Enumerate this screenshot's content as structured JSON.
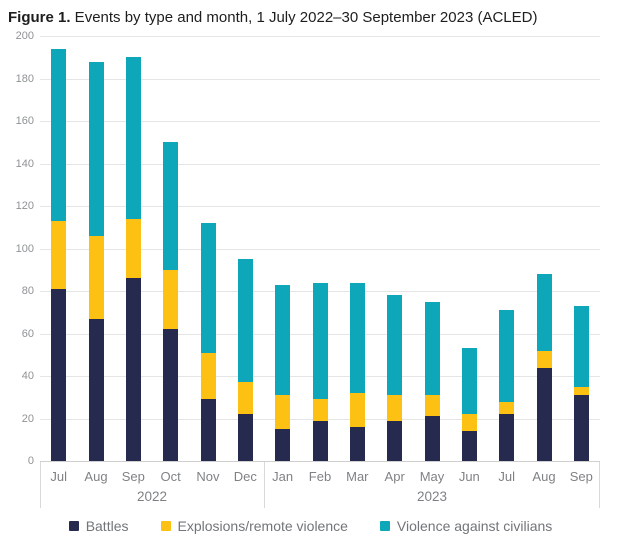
{
  "title": {
    "prefix": "Figure 1.",
    "text": " Events by type and month, 1 July 2022–30 September 2023 (ACLED)"
  },
  "chart_data": {
    "type": "bar",
    "stacked": true,
    "title": "Figure 1. Events by type and month, 1 July 2022–30 September 2023 (ACLED)",
    "xlabel": "",
    "ylabel": "",
    "categories": [
      "Jul",
      "Aug",
      "Sep",
      "Oct",
      "Nov",
      "Dec",
      "Jan",
      "Feb",
      "Mar",
      "Apr",
      "May",
      "Jun",
      "Jul",
      "Aug",
      "Sep"
    ],
    "year_groups": [
      {
        "label": "2022",
        "span": 6
      },
      {
        "label": "2023",
        "span": 9
      }
    ],
    "series": [
      {
        "name": "Battles",
        "color": "#262a4e",
        "values": [
          81,
          67,
          86,
          62,
          29,
          22,
          15,
          19,
          16,
          19,
          21,
          14,
          22,
          44,
          31
        ]
      },
      {
        "name": "Explosions/remote violence",
        "color": "#fdc113",
        "values": [
          32,
          39,
          28,
          28,
          22,
          15,
          16,
          10,
          16,
          12,
          10,
          8,
          6,
          8,
          4
        ]
      },
      {
        "name": "Violence against civilians",
        "color": "#0ea7ba",
        "values": [
          81,
          82,
          76,
          60,
          61,
          58,
          52,
          55,
          52,
          47,
          44,
          31,
          43,
          36,
          38
        ]
      }
    ],
    "totals": [
      194,
      188,
      190,
      150,
      112,
      95,
      83,
      84,
      84,
      78,
      75,
      53,
      71,
      88,
      73
    ],
    "ylim": [
      0,
      200
    ],
    "yticks": [
      0,
      20,
      40,
      60,
      80,
      100,
      120,
      140,
      160,
      180,
      200
    ],
    "grid": true,
    "legend_position": "bottom"
  },
  "legend": {
    "items": [
      {
        "label": "Battles",
        "color": "#262a4e"
      },
      {
        "label": "Explosions/remote violence",
        "color": "#fdc113"
      },
      {
        "label": "Violence against civilians",
        "color": "#0ea7ba"
      }
    ]
  },
  "colors": {
    "battles": "#262a4e",
    "explosions": "#fdc113",
    "violence": "#0ea7ba",
    "gridline": "#e5e5e5",
    "axis_line": "#cfcfcf",
    "tick_text": "#8f9294",
    "label_text": "#7f8285",
    "legend_text": "#727579",
    "title_text": "#1e1e1e"
  }
}
